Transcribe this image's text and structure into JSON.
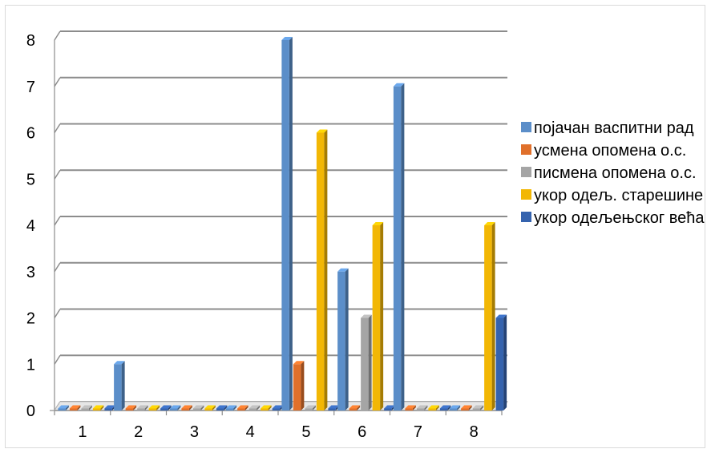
{
  "chart_data": {
    "type": "bar",
    "title": "",
    "xlabel": "",
    "ylabel": "",
    "ylim": [
      0,
      8
    ],
    "yticks": [
      "0",
      "1",
      "2",
      "3",
      "4",
      "5",
      "6",
      "7",
      "8"
    ],
    "categories": [
      "1",
      "2",
      "3",
      "4",
      "5",
      "6",
      "7",
      "8"
    ],
    "grid": true,
    "legend_position": "right",
    "style": "3d-clustered-bar",
    "series": [
      {
        "name": "појачан васпитни рад",
        "color": "#5B8EC9",
        "values": [
          0,
          1,
          0,
          0,
          8,
          3,
          7,
          0
        ]
      },
      {
        "name": "усмена опомена о.с.",
        "color": "#E0702B",
        "values": [
          0,
          0,
          0,
          0,
          1,
          0,
          0,
          0
        ]
      },
      {
        "name": "писмена опомена о.с.",
        "color": "#A5A5A5",
        "values": [
          0,
          0,
          0,
          0,
          0,
          2,
          0,
          0
        ]
      },
      {
        "name": "укор одељ. старешине",
        "color": "#F2B705",
        "values": [
          0,
          0,
          0,
          0,
          6,
          4,
          0,
          4
        ]
      },
      {
        "name": "укор одељењског већа",
        "color": "#3563AE",
        "values": [
          0,
          0,
          0,
          0,
          0,
          0,
          0,
          2
        ]
      }
    ]
  }
}
